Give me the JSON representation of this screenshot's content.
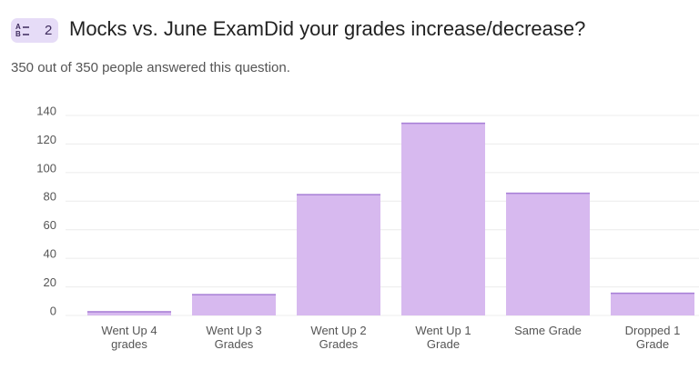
{
  "question_number": "2",
  "chart_data": {
    "type": "bar",
    "title": "Mocks vs. June ExamDid your grades increase/decrease?",
    "subtitle": "350 out of 350 people answered this question.",
    "categories": [
      "Went Up 4 grades",
      "Went Up 3 Grades",
      "Went Up 2 Grades",
      "Went Up 1 Grade",
      "Same Grade",
      "Dropped 1 Grade"
    ],
    "values": [
      3,
      15,
      85,
      135,
      86,
      16
    ],
    "color": "#d7b9ef",
    "ylim": [
      0,
      140
    ],
    "yticks": [
      0,
      20,
      40,
      60,
      80,
      100,
      120,
      140
    ],
    "grid": true
  }
}
